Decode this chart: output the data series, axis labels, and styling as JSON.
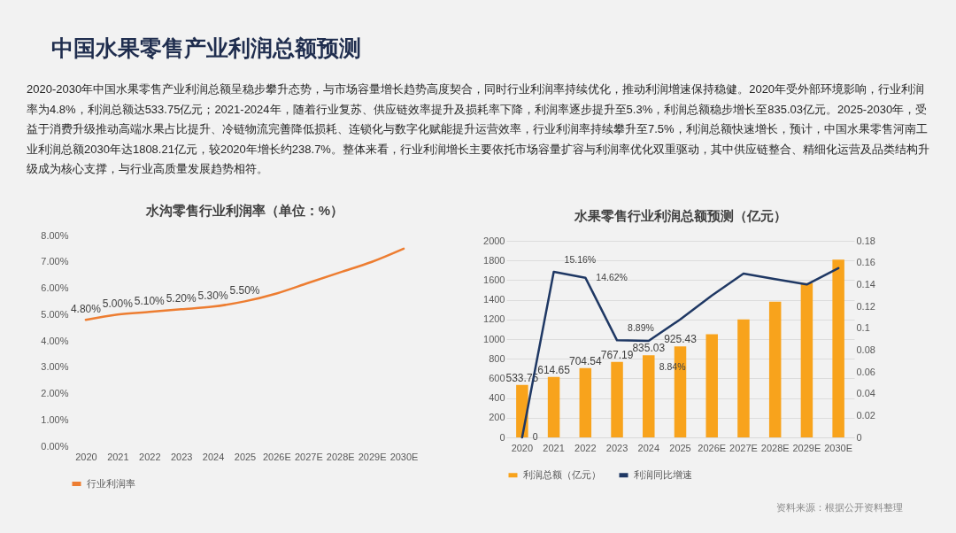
{
  "chart_data": [
    {
      "type": "other",
      "title": "中国水果零售产业利润总额预测",
      "subtitle": "2020-2030年中国水果零售产业利润总额呈稳步攀升态势，与市场容量增长趋势高度契合，同时行业利润率持续优化，推动利润增速保持稳健。2020年受外部环境影响，行业利润率为4.8%，利润总额达533.75亿元；2021-2024年，随着行业复苏、供应链效率提升及损耗率下降，利润率逐步提升至5.3%，利润总额稳步增长至835.03亿元。2025-2030年，受益于消费升级推动高端水果占比提升、冷链物流完善降低损耗、连锁化与数字化赋能提升运营效率，行业利润率持续攀升至7.5%，利润总额快速增长，预计，中国水果零售河南工业利润总额2030年达1808.21亿元，较2020年增长约238.7%。整体来看，行业利润增长主要依托市场容量扩容与利润率优化双重驱动，其中供应链整合、精细化运营及品类结构升级成为核心支撑，与行业高质量发展趋势相符。"
    },
    {
      "type": "line",
      "title": "水沟零售行业利润率（单位：%）",
      "categories": [
        "2020",
        "2021",
        "2022",
        "2023",
        "2024",
        "2025",
        "2026E",
        "2027E",
        "2028E",
        "2029E",
        "2030E"
      ],
      "series": [
        {
          "name": "行业利润率",
          "color": "#ed7d31",
          "values": [
            4.8,
            5.0,
            5.1,
            5.2,
            5.3,
            5.5,
            5.8,
            6.2,
            6.6,
            7.0,
            7.5
          ],
          "value_labels": [
            "4.80%",
            "5.00%",
            "5.10%",
            "5.20%",
            "5.30%",
            "5.50%",
            null,
            null,
            null,
            null,
            null
          ]
        }
      ],
      "ylim": [
        0,
        8
      ],
      "yticks": [
        {
          "value": 0,
          "label": "0.00%"
        },
        {
          "value": 1,
          "label": "1.00%"
        },
        {
          "value": 2,
          "label": "2.00%"
        },
        {
          "value": 3,
          "label": "3.00%"
        },
        {
          "value": 4,
          "label": "4.00%"
        },
        {
          "value": 5,
          "label": "5.00%"
        },
        {
          "value": 6,
          "label": "6.00%"
        },
        {
          "value": 7,
          "label": "7.00%"
        },
        {
          "value": 8,
          "label": "8.00%"
        }
      ],
      "legend": "bottom",
      "marker": "none"
    },
    {
      "type": "bar",
      "title": "水果零售行业利润总额预测（亿元）",
      "categories": [
        "2020",
        "2021",
        "2022",
        "2023",
        "2024",
        "2025",
        "2026E",
        "2027E",
        "2028E",
        "2029E",
        "2030E"
      ],
      "series": [
        {
          "name": "利润总额（亿元）",
          "color": "#f8a31c",
          "values": [
            533.75,
            614.65,
            704.54,
            767.19,
            835.03,
            925.43,
            1050,
            1200,
            1380,
            1570,
            1808.21
          ],
          "value_labels": [
            "533.75",
            "614.65",
            "704.54",
            "767.19",
            "835.03",
            "925.43",
            null,
            null,
            null,
            null,
            null
          ]
        },
        {
          "name": "利润同比增速",
          "type": "line",
          "axis": "y2",
          "color": "#1f3864",
          "values": [
            0,
            0.1516,
            0.1462,
            0.0889,
            0.0884,
            0.108,
            0.13,
            0.15,
            0.145,
            0.14,
            0.155
          ],
          "value_labels": [
            "0",
            "15.16%",
            "14.62%",
            "8.89%",
            "8.84%",
            null,
            null,
            null,
            null,
            null,
            null
          ]
        }
      ],
      "ylim": [
        0,
        2000
      ],
      "yticks": [
        0,
        200,
        400,
        600,
        800,
        1000,
        1200,
        1400,
        1600,
        1800,
        2000
      ],
      "y2lim": [
        0,
        0.18
      ],
      "y2ticks": [
        0,
        0.02,
        0.04,
        0.06,
        0.08,
        0.1,
        0.12,
        0.14,
        0.16,
        0.18
      ],
      "grid": "y",
      "legend": "bottom",
      "marker": "none",
      "annotations": [
        "资料来源：根据公开资料整理"
      ]
    }
  ]
}
